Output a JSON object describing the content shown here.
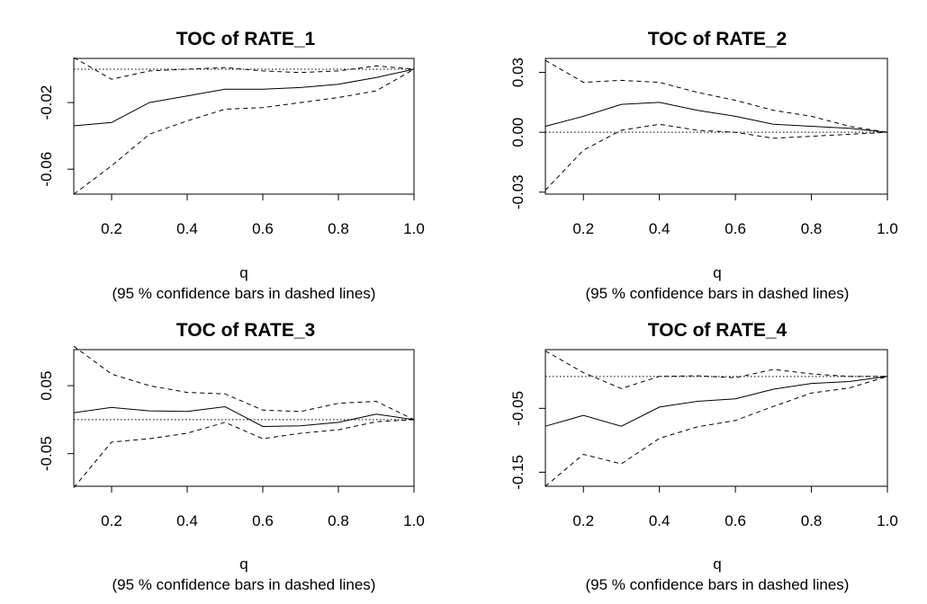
{
  "chart_data": [
    {
      "type": "line",
      "title": "TOC of RATE_1",
      "xlabel": "q",
      "xlabel_sub": "(95 % confidence bars in dashed lines)",
      "xlim": [
        0.1,
        1.0
      ],
      "ylim": [
        -0.075,
        0.0065
      ],
      "x_ticks": [
        "0.2",
        "0.4",
        "0.6",
        "0.8",
        "1.0"
      ],
      "x_tick_values": [
        0.2,
        0.4,
        0.6,
        0.8,
        1.0
      ],
      "y_ticks": [
        "-0.06",
        "-0.02"
      ],
      "y_tick_values": [
        -0.06,
        -0.02
      ],
      "x": [
        0.1,
        0.2,
        0.3,
        0.4,
        0.5,
        0.6,
        0.7,
        0.8,
        0.9,
        1.0
      ],
      "zero_line": 0,
      "series": [
        {
          "role": "estimate",
          "values": [
            -0.034,
            -0.032,
            -0.02,
            -0.016,
            -0.012,
            -0.012,
            -0.011,
            -0.009,
            -0.005,
            0.0
          ]
        },
        {
          "role": "upper",
          "values": [
            0.007,
            -0.006,
            -0.001,
            0.0,
            0.001,
            -0.001,
            -0.002,
            -0.001,
            0.002,
            0.0
          ]
        },
        {
          "role": "lower",
          "values": [
            -0.075,
            -0.058,
            -0.039,
            -0.031,
            -0.024,
            -0.023,
            -0.02,
            -0.017,
            -0.013,
            0.0
          ]
        }
      ]
    },
    {
      "type": "line",
      "title": "TOC of RATE_2",
      "xlabel": "q",
      "xlabel_sub": "(95 % confidence bars in dashed lines)",
      "xlim": [
        0.1,
        1.0
      ],
      "ylim": [
        -0.031,
        0.037
      ],
      "x_ticks": [
        "0.2",
        "0.4",
        "0.6",
        "0.8",
        "1.0"
      ],
      "x_tick_values": [
        0.2,
        0.4,
        0.6,
        0.8,
        1.0
      ],
      "y_ticks": [
        "-0.03",
        "0.00",
        "0.03"
      ],
      "y_tick_values": [
        -0.03,
        0.0,
        0.03
      ],
      "x": [
        0.1,
        0.2,
        0.3,
        0.4,
        0.5,
        0.6,
        0.7,
        0.8,
        0.9,
        1.0
      ],
      "zero_line": 0,
      "series": [
        {
          "role": "estimate",
          "values": [
            0.003,
            0.008,
            0.014,
            0.015,
            0.011,
            0.008,
            0.004,
            0.003,
            0.002,
            0.0
          ]
        },
        {
          "role": "upper",
          "values": [
            0.036,
            0.025,
            0.026,
            0.025,
            0.02,
            0.016,
            0.011,
            0.008,
            0.003,
            0.0
          ]
        },
        {
          "role": "lower",
          "values": [
            -0.029,
            -0.009,
            0.001,
            0.004,
            0.001,
            0.0,
            -0.003,
            -0.002,
            -0.001,
            0.0
          ]
        }
      ]
    },
    {
      "type": "line",
      "title": "TOC of RATE_3",
      "xlabel": "q",
      "xlabel_sub": "(95 % confidence bars in dashed lines)",
      "xlim": [
        0.1,
        1.0
      ],
      "ylim": [
        -0.098,
        0.103
      ],
      "x_ticks": [
        "0.2",
        "0.4",
        "0.6",
        "0.8",
        "1.0"
      ],
      "x_tick_values": [
        0.2,
        0.4,
        0.6,
        0.8,
        1.0
      ],
      "y_ticks": [
        "-0.05",
        "0.05"
      ],
      "y_tick_values": [
        -0.05,
        0.05
      ],
      "x": [
        0.1,
        0.2,
        0.3,
        0.4,
        0.5,
        0.6,
        0.7,
        0.8,
        0.9,
        1.0
      ],
      "zero_line": 0,
      "series": [
        {
          "role": "estimate",
          "values": [
            0.01,
            0.018,
            0.013,
            0.012,
            0.019,
            -0.01,
            -0.009,
            -0.004,
            0.008,
            0.0
          ]
        },
        {
          "role": "upper",
          "values": [
            0.108,
            0.067,
            0.05,
            0.04,
            0.038,
            0.014,
            0.012,
            0.024,
            0.027,
            0.0
          ]
        },
        {
          "role": "lower",
          "values": [
            -0.1,
            -0.033,
            -0.028,
            -0.02,
            -0.004,
            -0.028,
            -0.02,
            -0.015,
            -0.003,
            0.0
          ]
        }
      ]
    },
    {
      "type": "line",
      "title": "TOC of RATE_4",
      "xlabel": "q",
      "xlabel_sub": "(95 % confidence bars in dashed lines)",
      "xlim": [
        0.1,
        1.0
      ],
      "ylim": [
        -0.172,
        0.042
      ],
      "x_ticks": [
        "0.2",
        "0.4",
        "0.6",
        "0.8",
        "1.0"
      ],
      "x_tick_values": [
        0.2,
        0.4,
        0.6,
        0.8,
        1.0
      ],
      "y_ticks": [
        "-0.15",
        "-0.05"
      ],
      "y_tick_values": [
        -0.15,
        -0.05
      ],
      "x": [
        0.1,
        0.2,
        0.3,
        0.4,
        0.5,
        0.6,
        0.7,
        0.8,
        0.9,
        1.0
      ],
      "zero_line": 0,
      "series": [
        {
          "role": "estimate",
          "values": [
            -0.078,
            -0.061,
            -0.078,
            -0.048,
            -0.039,
            -0.035,
            -0.02,
            -0.011,
            -0.008,
            0.0
          ]
        },
        {
          "role": "upper",
          "values": [
            0.04,
            0.006,
            -0.019,
            0.0,
            0.001,
            -0.002,
            0.011,
            0.004,
            0.0,
            0.0
          ]
        },
        {
          "role": "lower",
          "values": [
            -0.172,
            -0.122,
            -0.137,
            -0.097,
            -0.079,
            -0.069,
            -0.047,
            -0.026,
            -0.018,
            0.0
          ]
        }
      ]
    }
  ]
}
